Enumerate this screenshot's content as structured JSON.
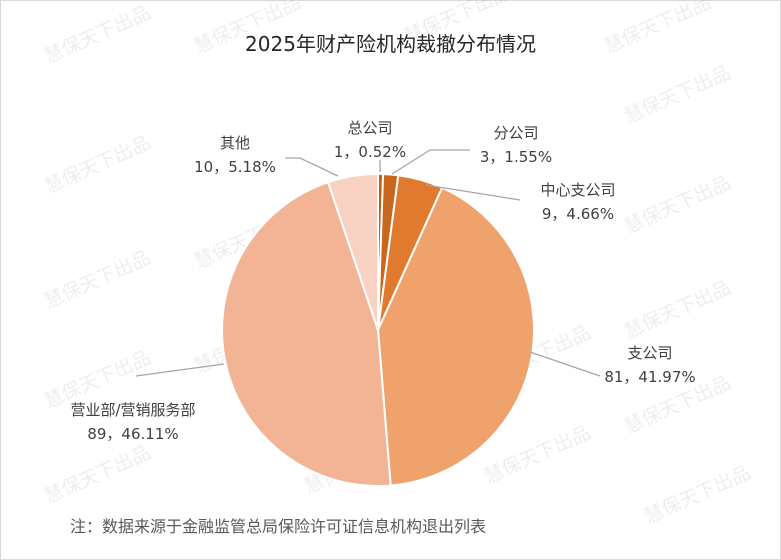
{
  "chart_data": {
    "type": "pie",
    "title": "2025年财产险机构裁撤分布情况",
    "slices": [
      {
        "label": "总公司",
        "value": 1,
        "percent": "0.52%",
        "color": "#c55a11"
      },
      {
        "label": "分公司",
        "value": 3,
        "percent": "1.55%",
        "color": "#c9671e"
      },
      {
        "label": "中心支公司",
        "value": 9,
        "percent": "4.66%",
        "color": "#e07a2e"
      },
      {
        "label": "支公司",
        "value": 81,
        "percent": "41.97%",
        "color": "#f0a26c"
      },
      {
        "label": "营业部/营销服务部",
        "value": 89,
        "percent": "46.11%",
        "color": "#f3b496"
      },
      {
        "label": "其他",
        "value": 10,
        "percent": "5.18%",
        "color": "#f7d2c2"
      }
    ]
  },
  "note": "注：数据来源于金融监管总局保险许可证信息机构退出列表",
  "watermark": "慧保天下出品"
}
